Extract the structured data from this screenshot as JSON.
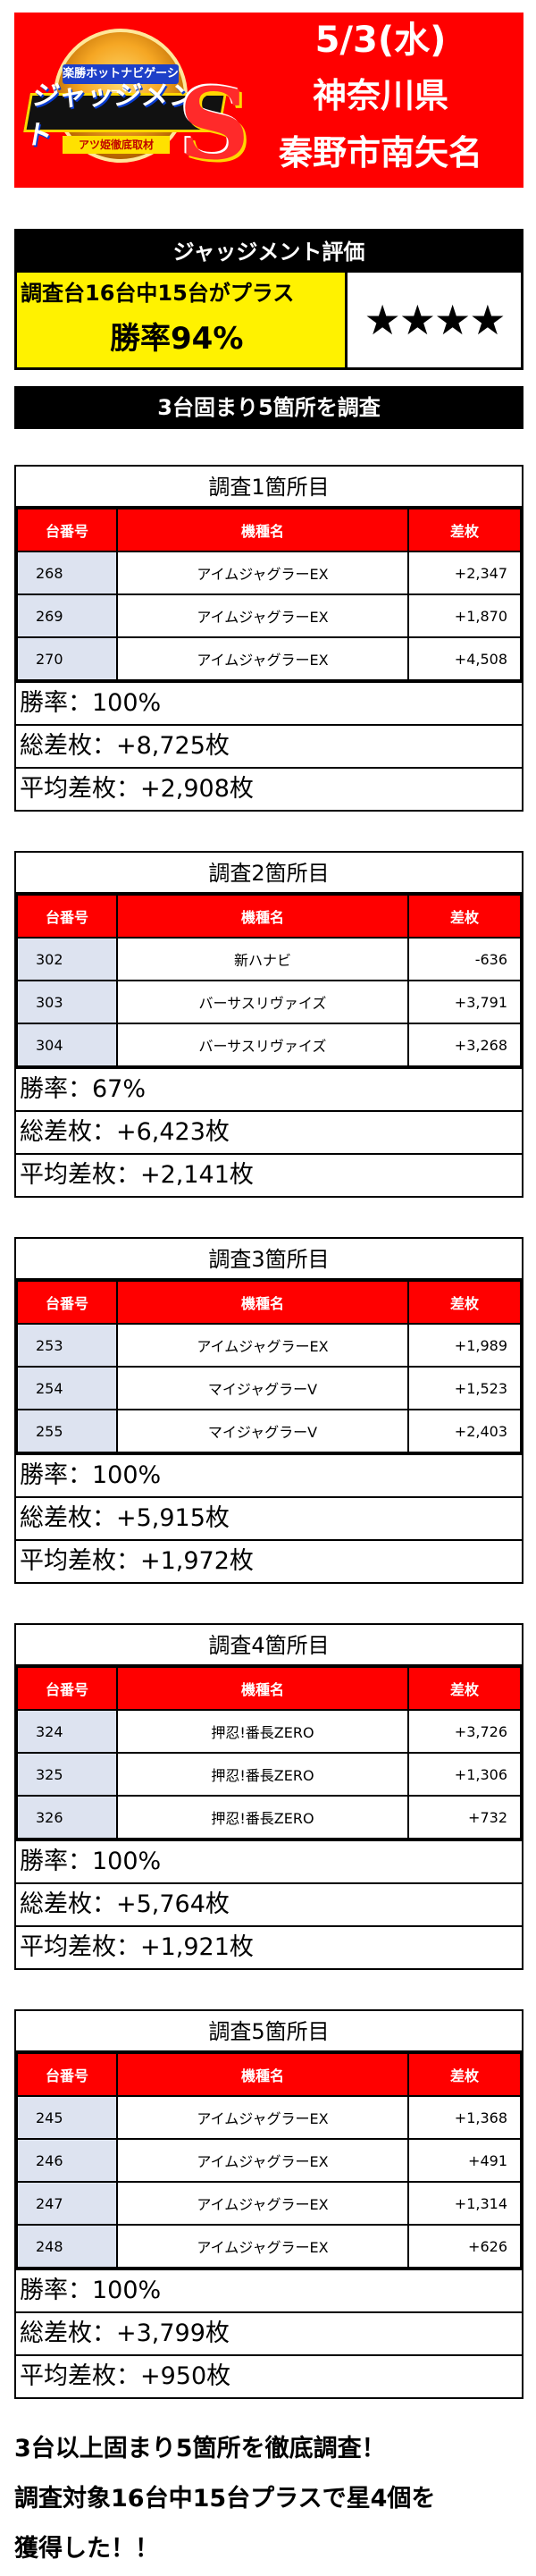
{
  "header": {
    "logo_top_text": "楽勝ホットナビゲーション",
    "logo_main_text": "ジャッジメント",
    "logo_s": "S",
    "logo_bottom_text": "アツ姫徹底取材",
    "date": "5/3(水)",
    "prefecture": "神奈川県",
    "city": "秦野市南矢名",
    "background_color": "#ff0000"
  },
  "evaluation": {
    "title": "ジャッジメント評価",
    "line1": "調査台16台中15台がプラス",
    "line2": "勝率94%",
    "stars": "★★★★",
    "highlight_color": "#fff200"
  },
  "banner": "3台固まり5箇所を調査",
  "table_headers": {
    "num": "台番号",
    "machine": "機種名",
    "diff": "差枚"
  },
  "surveys": [
    {
      "title": "調査1箇所目",
      "rows": [
        {
          "num": "268",
          "machine": "アイムジャグラーEX",
          "diff": "+2,347"
        },
        {
          "num": "269",
          "machine": "アイムジャグラーEX",
          "diff": "+1,870"
        },
        {
          "num": "270",
          "machine": "アイムジャグラーEX",
          "diff": "+4,508"
        }
      ],
      "win_rate": "勝率：100%",
      "total": "総差枚：+8,725枚",
      "average": "平均差枚：+2,908枚"
    },
    {
      "title": "調査2箇所目",
      "rows": [
        {
          "num": "302",
          "machine": "新ハナビ",
          "diff": "-636"
        },
        {
          "num": "303",
          "machine": "バーサスリヴァイズ",
          "diff": "+3,791"
        },
        {
          "num": "304",
          "machine": "バーサスリヴァイズ",
          "diff": "+3,268"
        }
      ],
      "win_rate": "勝率：67%",
      "total": "総差枚：+6,423枚",
      "average": "平均差枚：+2,141枚"
    },
    {
      "title": "調査3箇所目",
      "rows": [
        {
          "num": "253",
          "machine": "アイムジャグラーEX",
          "diff": "+1,989"
        },
        {
          "num": "254",
          "machine": "マイジャグラーV",
          "diff": "+1,523"
        },
        {
          "num": "255",
          "machine": "マイジャグラーV",
          "diff": "+2,403"
        }
      ],
      "win_rate": "勝率：100%",
      "total": "総差枚：+5,915枚",
      "average": "平均差枚：+1,972枚"
    },
    {
      "title": "調査4箇所目",
      "rows": [
        {
          "num": "324",
          "machine": "押忍!番長ZERO",
          "diff": "+3,726"
        },
        {
          "num": "325",
          "machine": "押忍!番長ZERO",
          "diff": "+1,306"
        },
        {
          "num": "326",
          "machine": "押忍!番長ZERO",
          "diff": "+732"
        }
      ],
      "win_rate": "勝率：100%",
      "total": "総差枚：+5,764枚",
      "average": "平均差枚：+1,921枚"
    },
    {
      "title": "調査5箇所目",
      "rows": [
        {
          "num": "245",
          "machine": "アイムジャグラーEX",
          "diff": "+1,368"
        },
        {
          "num": "246",
          "machine": "アイムジャグラーEX",
          "diff": "+491"
        },
        {
          "num": "247",
          "machine": "アイムジャグラーEX",
          "diff": "+1,314"
        },
        {
          "num": "248",
          "machine": "アイムジャグラーEX",
          "diff": "+626"
        }
      ],
      "win_rate": "勝率：100%",
      "total": "総差枚：+3,799枚",
      "average": "平均差枚：+950枚"
    }
  ],
  "footer": {
    "line1": "3台以上固まり5箇所を徹底調査！",
    "line2": "調査対象16台中15台プラスで星4個を",
    "line3": "獲得した！！"
  }
}
